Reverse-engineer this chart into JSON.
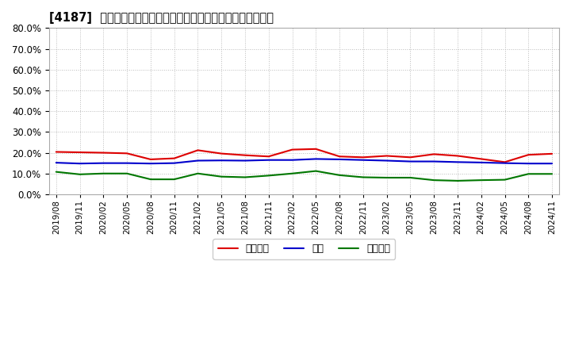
{
  "title": "[4187]  売上債権、在庫、買入債務の総資産に対する比率の推移",
  "background_color": "#ffffff",
  "grid_color": "#aaaaaa",
  "legend_labels": [
    "売上債権",
    "在庫",
    "買入債務"
  ],
  "line_colors": [
    "#dd0000",
    "#0000cc",
    "#007700"
  ],
  "dates": [
    "2019/08",
    "2019/11",
    "2020/02",
    "2020/05",
    "2020/08",
    "2020/11",
    "2021/02",
    "2021/05",
    "2021/08",
    "2021/11",
    "2022/02",
    "2022/05",
    "2022/08",
    "2022/11",
    "2023/02",
    "2023/05",
    "2023/08",
    "2023/11",
    "2024/02",
    "2024/05",
    "2024/08",
    "2024/11"
  ],
  "series_uriage": [
    0.204,
    0.202,
    0.2,
    0.197,
    0.168,
    0.173,
    0.212,
    0.196,
    0.188,
    0.182,
    0.215,
    0.218,
    0.182,
    0.178,
    0.185,
    0.178,
    0.193,
    0.185,
    0.17,
    0.155,
    0.19,
    0.195
  ],
  "series_zaiko": [
    0.152,
    0.148,
    0.15,
    0.15,
    0.148,
    0.15,
    0.162,
    0.163,
    0.162,
    0.165,
    0.165,
    0.17,
    0.168,
    0.165,
    0.162,
    0.158,
    0.158,
    0.155,
    0.153,
    0.15,
    0.148,
    0.148
  ],
  "series_kaiire": [
    0.108,
    0.096,
    0.1,
    0.1,
    0.072,
    0.072,
    0.1,
    0.085,
    0.082,
    0.09,
    0.1,
    0.112,
    0.092,
    0.082,
    0.08,
    0.08,
    0.068,
    0.065,
    0.068,
    0.07,
    0.098,
    0.098
  ],
  "ylim": [
    0.0,
    0.8
  ],
  "yticks": [
    0.0,
    0.1,
    0.2,
    0.3,
    0.4,
    0.5,
    0.6,
    0.7,
    0.8
  ]
}
